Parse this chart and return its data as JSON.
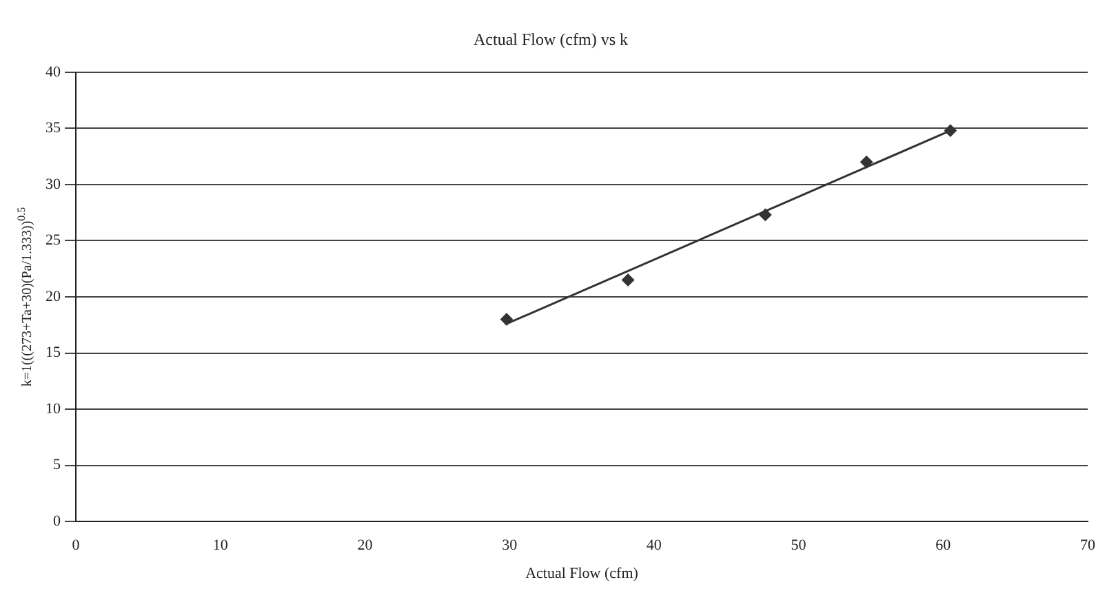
{
  "chart_data": {
    "type": "scatter",
    "title": "Actual Flow (cfm) vs k",
    "xlabel": "Actual Flow (cfm)",
    "ylabel": "k=1(((273+Ta+30)(Pa/1.333))$^{0.5}$",
    "x": [
      29.8,
      38.2,
      47.7,
      54.7,
      60.5
    ],
    "series": [
      {
        "color": "#333333",
        "values": [
          18,
          21.5,
          27.3,
          32,
          34.8
        ],
        "marker": "diamond"
      },
      {
        "type": "line",
        "color": "#333333",
        "x": [
          29.8,
          60.5
        ],
        "values": [
          17.6,
          34.8
        ],
        "marker": "none"
      }
    ],
    "xlim": [
      0,
      70
    ],
    "xticks": [
      0,
      10,
      20,
      30,
      40,
      50,
      60,
      70
    ],
    "ylim": [
      0,
      40
    ],
    "yticks": [
      0,
      5,
      10,
      15,
      20,
      25,
      30,
      35,
      40
    ],
    "grid": "y",
    "legend": false
  }
}
